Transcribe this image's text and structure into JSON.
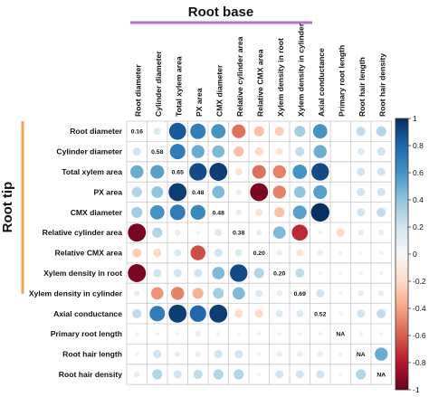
{
  "chart_data": {
    "type": "heatmap",
    "title": "",
    "column_group_label": "Root base",
    "row_group_label": "Root tip",
    "columns": [
      "Root diameter",
      "Cylinder diameter",
      "Total xylem area",
      "PX area",
      "CMX diameter",
      "Relative cylinder area",
      "Relative CMX area",
      "Xylem density in root",
      "Xylem density in cylinder",
      "Axial conductance",
      "Primary root length",
      "Root hair length",
      "Root hair density"
    ],
    "rows": [
      "Root diameter",
      "Cylinder diameter",
      "Total xylem area",
      "PX area",
      "CMX diameter",
      "Relative cylinder area",
      "Relative CMX area",
      "Xylem density in root",
      "Xylem density in cylinder",
      "Axial conductance",
      "Primary root length",
      "Root hair length",
      "Root hair density"
    ],
    "values": [
      [
        null,
        0.15,
        0.85,
        0.7,
        0.6,
        -0.55,
        -0.3,
        -0.25,
        0.35,
        0.6,
        null,
        0.25,
        0.3
      ],
      [
        0.2,
        null,
        0.7,
        0.5,
        0.45,
        -0.3,
        -0.2,
        -0.15,
        0.25,
        0.5,
        null,
        0.15,
        0.2
      ],
      [
        0.5,
        0.55,
        null,
        0.9,
        0.95,
        -0.15,
        -0.55,
        -0.5,
        0.6,
        0.9,
        null,
        0.2,
        0.2
      ],
      [
        0.3,
        0.4,
        0.95,
        null,
        0.45,
        -0.1,
        -0.95,
        -0.5,
        0.4,
        0.55,
        null,
        0.2,
        0.2
      ],
      [
        0.35,
        0.6,
        0.7,
        0.65,
        null,
        0.1,
        -0.15,
        -0.3,
        0.55,
        1.0,
        null,
        0.2,
        0.25
      ],
      [
        -0.95,
        0.3,
        0.1,
        0.05,
        0.15,
        null,
        0.1,
        0.45,
        -0.75,
        0.05,
        -0.2,
        0.1,
        0.1
      ],
      [
        -0.25,
        -0.2,
        0.15,
        -0.65,
        0.2,
        0.15,
        null,
        0.1,
        -0.15,
        0.1,
        0.05,
        0.05,
        0.05
      ],
      [
        -0.95,
        0.2,
        0.2,
        0.2,
        0.45,
        0.9,
        0.3,
        null,
        0.25,
        0.05,
        0.05,
        0.05,
        0.05
      ],
      [
        0.1,
        -0.45,
        -0.5,
        -0.35,
        0.35,
        0.45,
        0.15,
        0.1,
        null,
        0.2,
        0.05,
        0.1,
        0.1
      ],
      [
        0.25,
        0.7,
        0.95,
        0.8,
        0.95,
        -0.2,
        -0.2,
        0.15,
        0.15,
        null,
        0.05,
        0.2,
        0.25
      ],
      [
        0.05,
        0.05,
        0.05,
        0.1,
        0.05,
        0.05,
        0.05,
        0.05,
        0.05,
        0.05,
        null,
        0.05,
        0.05
      ],
      [
        0.05,
        0.2,
        0.1,
        0.1,
        0.2,
        0.2,
        0.05,
        0.1,
        0.1,
        0.1,
        0.05,
        null,
        0.5
      ],
      [
        0.1,
        0.3,
        0.2,
        0.25,
        0.3,
        0.3,
        0.05,
        0.2,
        0.2,
        0.2,
        0.05,
        0.3,
        null
      ]
    ],
    "diagonal_labels": [
      "0.16",
      "0.58",
      "0.65",
      "0.48",
      "0.48",
      "0.38",
      "0.20",
      "0.20",
      "0.69",
      "0.52",
      "NA",
      "NA",
      "NA"
    ],
    "colorbar": {
      "min": -1,
      "max": 1,
      "ticks": [
        "1",
        "0.8",
        "0.6",
        "0.4",
        "0.2",
        "0",
        "-0.2",
        "-0.4",
        "-0.6",
        "-0.8",
        "-1"
      ],
      "colors": [
        "#67001f",
        "#b2182b",
        "#d6604d",
        "#f4a582",
        "#fddbc7",
        "#f7f7f7",
        "#d1e5f0",
        "#92c5de",
        "#4393c3",
        "#2166ac",
        "#053061"
      ]
    },
    "bracket_colors": {
      "root_base": "#b46fd6",
      "root_tip": "#f3a15a"
    },
    "grid": true,
    "legend_placement": "right"
  }
}
